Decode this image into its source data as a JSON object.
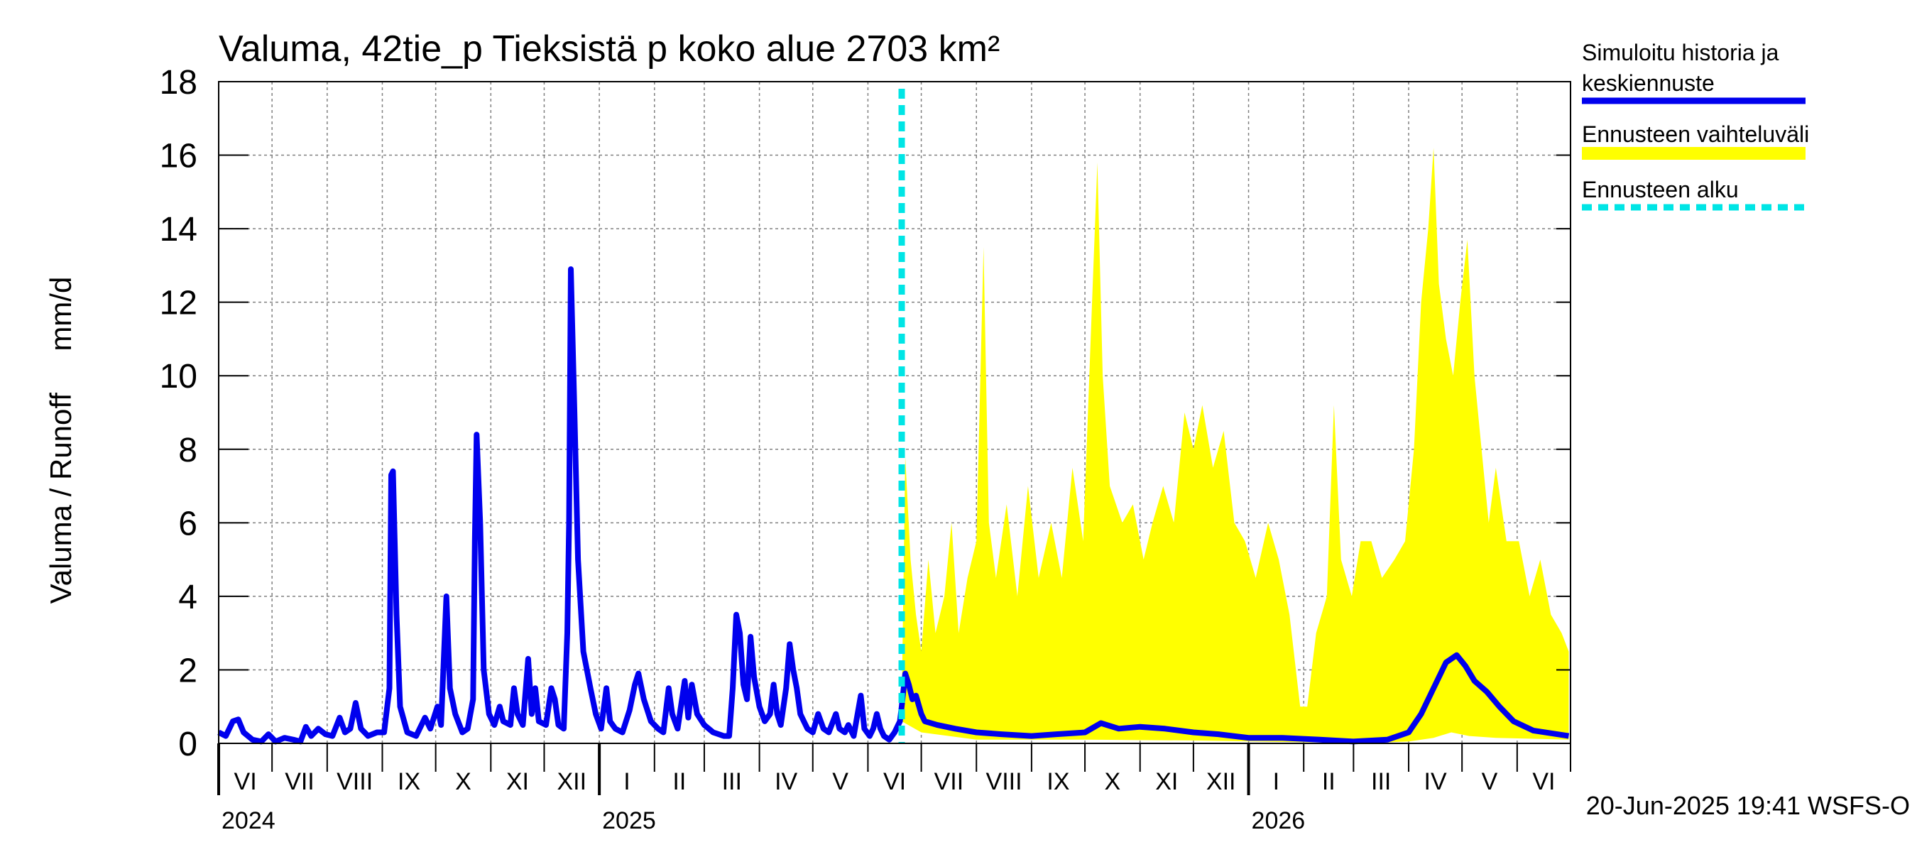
{
  "chart_data": {
    "type": "line",
    "title": "Valuma, 42tie_p Tieksistä p koko alue 2703 km²",
    "ylabel": "Valuma / Runoff     mm/d",
    "ylim": [
      0,
      18
    ],
    "yticks": [
      0,
      2,
      4,
      6,
      8,
      10,
      12,
      14,
      16,
      18
    ],
    "xlim": [
      "2024-06-01",
      "2026-06-30"
    ],
    "grid": true,
    "forecast_start": "2025-06-20",
    "month_labels": [
      "VI",
      "VII",
      "VIII",
      "IX",
      "X",
      "XI",
      "XII",
      "I",
      "II",
      "III",
      "IV",
      "V",
      "VI",
      "VII",
      "VIII",
      "IX",
      "X",
      "XI",
      "XII",
      "I",
      "II",
      "III",
      "IV",
      "V",
      "VI"
    ],
    "year_labels": [
      {
        "label": "2024",
        "date": "2024-06-01"
      },
      {
        "label": "2025",
        "date": "2025-01-01"
      },
      {
        "label": "2026",
        "date": "2026-01-01"
      }
    ],
    "legend_position": "right",
    "series": [
      {
        "name": "Simuloitu historia ja keskiennuste",
        "color": "#0000ee",
        "points": [
          [
            "2024-06-01",
            0.3
          ],
          [
            "2024-06-05",
            0.2
          ],
          [
            "2024-06-09",
            0.6
          ],
          [
            "2024-06-12",
            0.65
          ],
          [
            "2024-06-15",
            0.3
          ],
          [
            "2024-06-20",
            0.1
          ],
          [
            "2024-06-25",
            0.05
          ],
          [
            "2024-06-29",
            0.25
          ],
          [
            "2024-07-03",
            0.05
          ],
          [
            "2024-07-08",
            0.15
          ],
          [
            "2024-07-13",
            0.1
          ],
          [
            "2024-07-17",
            0.05
          ],
          [
            "2024-07-20",
            0.45
          ],
          [
            "2024-07-23",
            0.2
          ],
          [
            "2024-07-27",
            0.4
          ],
          [
            "2024-07-31",
            0.25
          ],
          [
            "2024-08-04",
            0.2
          ],
          [
            "2024-08-08",
            0.7
          ],
          [
            "2024-08-11",
            0.3
          ],
          [
            "2024-08-14",
            0.4
          ],
          [
            "2024-08-17",
            1.1
          ],
          [
            "2024-08-20",
            0.4
          ],
          [
            "2024-08-24",
            0.2
          ],
          [
            "2024-08-29",
            0.3
          ],
          [
            "2024-09-02",
            0.3
          ],
          [
            "2024-09-05",
            1.5
          ],
          [
            "2024-09-06",
            7.3
          ],
          [
            "2024-09-07",
            7.4
          ],
          [
            "2024-09-09",
            3.5
          ],
          [
            "2024-09-11",
            1.0
          ],
          [
            "2024-09-15",
            0.3
          ],
          [
            "2024-09-20",
            0.2
          ],
          [
            "2024-09-25",
            0.7
          ],
          [
            "2024-09-28",
            0.4
          ],
          [
            "2024-10-02",
            1.0
          ],
          [
            "2024-10-04",
            0.5
          ],
          [
            "2024-10-07",
            4.0
          ],
          [
            "2024-10-09",
            1.5
          ],
          [
            "2024-10-12",
            0.8
          ],
          [
            "2024-10-16",
            0.3
          ],
          [
            "2024-10-19",
            0.4
          ],
          [
            "2024-10-22",
            1.2
          ],
          [
            "2024-10-23",
            5.5
          ],
          [
            "2024-10-24",
            8.4
          ],
          [
            "2024-10-26",
            6.0
          ],
          [
            "2024-10-28",
            2.0
          ],
          [
            "2024-10-31",
            0.8
          ],
          [
            "2024-11-03",
            0.5
          ],
          [
            "2024-11-06",
            1.0
          ],
          [
            "2024-11-08",
            0.6
          ],
          [
            "2024-11-12",
            0.5
          ],
          [
            "2024-11-14",
            1.5
          ],
          [
            "2024-11-16",
            0.8
          ],
          [
            "2024-11-19",
            0.5
          ],
          [
            "2024-11-22",
            2.3
          ],
          [
            "2024-11-24",
            0.8
          ],
          [
            "2024-11-26",
            1.5
          ],
          [
            "2024-11-28",
            0.6
          ],
          [
            "2024-12-02",
            0.5
          ],
          [
            "2024-12-05",
            1.5
          ],
          [
            "2024-12-07",
            1.2
          ],
          [
            "2024-12-09",
            0.5
          ],
          [
            "2024-12-12",
            0.4
          ],
          [
            "2024-12-14",
            3.0
          ],
          [
            "2024-12-15",
            6.0
          ],
          [
            "2024-12-16",
            12.9
          ],
          [
            "2024-12-18",
            9.0
          ],
          [
            "2024-12-20",
            5.0
          ],
          [
            "2024-12-23",
            2.5
          ],
          [
            "2024-12-27",
            1.5
          ],
          [
            "2024-12-30",
            0.8
          ],
          [
            "2025-01-02",
            0.4
          ],
          [
            "2025-01-05",
            1.5
          ],
          [
            "2025-01-07",
            0.6
          ],
          [
            "2025-01-10",
            0.4
          ],
          [
            "2025-01-14",
            0.3
          ],
          [
            "2025-01-18",
            0.9
          ],
          [
            "2025-01-21",
            1.6
          ],
          [
            "2025-01-23",
            1.9
          ],
          [
            "2025-01-26",
            1.2
          ],
          [
            "2025-01-30",
            0.6
          ],
          [
            "2025-02-03",
            0.4
          ],
          [
            "2025-02-06",
            0.3
          ],
          [
            "2025-02-09",
            1.5
          ],
          [
            "2025-02-11",
            0.8
          ],
          [
            "2025-02-14",
            0.4
          ],
          [
            "2025-02-18",
            1.7
          ],
          [
            "2025-02-20",
            0.7
          ],
          [
            "2025-02-22",
            1.6
          ],
          [
            "2025-02-25",
            0.8
          ],
          [
            "2025-03-01",
            0.5
          ],
          [
            "2025-03-06",
            0.3
          ],
          [
            "2025-03-12",
            0.2
          ],
          [
            "2025-03-15",
            0.2
          ],
          [
            "2025-03-17",
            1.5
          ],
          [
            "2025-03-19",
            3.5
          ],
          [
            "2025-03-21",
            3.0
          ],
          [
            "2025-03-23",
            1.6
          ],
          [
            "2025-03-25",
            1.2
          ],
          [
            "2025-03-27",
            2.9
          ],
          [
            "2025-03-29",
            1.8
          ],
          [
            "2025-04-01",
            1.0
          ],
          [
            "2025-04-04",
            0.6
          ],
          [
            "2025-04-07",
            0.8
          ],
          [
            "2025-04-09",
            1.6
          ],
          [
            "2025-04-11",
            0.8
          ],
          [
            "2025-04-13",
            0.5
          ],
          [
            "2025-04-16",
            1.5
          ],
          [
            "2025-04-18",
            2.7
          ],
          [
            "2025-04-20",
            2.0
          ],
          [
            "2025-04-22",
            1.5
          ],
          [
            "2025-04-24",
            0.8
          ],
          [
            "2025-04-28",
            0.4
          ],
          [
            "2025-05-01",
            0.3
          ],
          [
            "2025-05-04",
            0.8
          ],
          [
            "2025-05-07",
            0.4
          ],
          [
            "2025-05-10",
            0.3
          ],
          [
            "2025-05-14",
            0.8
          ],
          [
            "2025-05-16",
            0.4
          ],
          [
            "2025-05-19",
            0.3
          ],
          [
            "2025-05-21",
            0.5
          ],
          [
            "2025-05-24",
            0.2
          ],
          [
            "2025-05-28",
            1.3
          ],
          [
            "2025-05-30",
            0.4
          ],
          [
            "2025-06-02",
            0.2
          ],
          [
            "2025-06-04",
            0.4
          ],
          [
            "2025-06-06",
            0.8
          ],
          [
            "2025-06-08",
            0.4
          ],
          [
            "2025-06-10",
            0.2
          ],
          [
            "2025-06-13",
            0.1
          ],
          [
            "2025-06-16",
            0.3
          ],
          [
            "2025-06-19",
            0.6
          ],
          [
            "2025-06-20",
            1.0
          ],
          [
            "2025-06-22",
            1.9
          ],
          [
            "2025-06-24",
            1.6
          ],
          [
            "2025-06-26",
            1.2
          ],
          [
            "2025-06-28",
            1.3
          ],
          [
            "2025-07-01",
            0.8
          ],
          [
            "2025-07-03",
            0.6
          ],
          [
            "2025-07-10",
            0.5
          ],
          [
            "2025-07-20",
            0.4
          ],
          [
            "2025-08-01",
            0.3
          ],
          [
            "2025-08-15",
            0.25
          ],
          [
            "2025-09-01",
            0.2
          ],
          [
            "2025-09-15",
            0.25
          ],
          [
            "2025-10-01",
            0.3
          ],
          [
            "2025-10-10",
            0.55
          ],
          [
            "2025-10-20",
            0.4
          ],
          [
            "2025-11-01",
            0.45
          ],
          [
            "2025-11-15",
            0.4
          ],
          [
            "2025-12-01",
            0.3
          ],
          [
            "2025-12-15",
            0.25
          ],
          [
            "2026-01-01",
            0.15
          ],
          [
            "2026-01-20",
            0.15
          ],
          [
            "2026-02-10",
            0.1
          ],
          [
            "2026-03-01",
            0.05
          ],
          [
            "2026-03-20",
            0.1
          ],
          [
            "2026-04-01",
            0.3
          ],
          [
            "2026-04-08",
            0.8
          ],
          [
            "2026-04-15",
            1.5
          ],
          [
            "2026-04-22",
            2.2
          ],
          [
            "2026-04-28",
            2.4
          ],
          [
            "2026-05-03",
            2.1
          ],
          [
            "2026-05-08",
            1.7
          ],
          [
            "2026-05-15",
            1.4
          ],
          [
            "2026-05-22",
            1.0
          ],
          [
            "2026-05-30",
            0.6
          ],
          [
            "2026-06-10",
            0.35
          ],
          [
            "2026-06-30",
            0.2
          ]
        ]
      },
      {
        "name": "Ennusteen vaihteluväli",
        "color": "#ffff00",
        "upper": [
          [
            "2025-06-20",
            1.0
          ],
          [
            "2025-06-22",
            7.8
          ],
          [
            "2025-06-25",
            5.0
          ],
          [
            "2025-06-28",
            3.5
          ],
          [
            "2025-07-01",
            2.5
          ],
          [
            "2025-07-05",
            5.0
          ],
          [
            "2025-07-09",
            3.0
          ],
          [
            "2025-07-14",
            4.0
          ],
          [
            "2025-07-18",
            6.0
          ],
          [
            "2025-07-22",
            3.0
          ],
          [
            "2025-07-27",
            4.5
          ],
          [
            "2025-08-01",
            5.5
          ],
          [
            "2025-08-05",
            13.5
          ],
          [
            "2025-08-08",
            6.0
          ],
          [
            "2025-08-12",
            4.5
          ],
          [
            "2025-08-18",
            6.5
          ],
          [
            "2025-08-24",
            4.0
          ],
          [
            "2025-08-30",
            7.0
          ],
          [
            "2025-09-05",
            4.5
          ],
          [
            "2025-09-12",
            6.0
          ],
          [
            "2025-09-18",
            4.5
          ],
          [
            "2025-09-24",
            7.5
          ],
          [
            "2025-09-30",
            5.5
          ],
          [
            "2025-10-05",
            12.0
          ],
          [
            "2025-10-08",
            15.8
          ],
          [
            "2025-10-11",
            10.0
          ],
          [
            "2025-10-15",
            7.0
          ],
          [
            "2025-10-22",
            6.0
          ],
          [
            "2025-10-28",
            6.5
          ],
          [
            "2025-11-03",
            5.0
          ],
          [
            "2025-11-08",
            6.0
          ],
          [
            "2025-11-14",
            7.0
          ],
          [
            "2025-11-20",
            6.0
          ],
          [
            "2025-11-26",
            9.0
          ],
          [
            "2025-12-01",
            8.0
          ],
          [
            "2025-12-06",
            9.2
          ],
          [
            "2025-12-12",
            7.5
          ],
          [
            "2025-12-18",
            8.5
          ],
          [
            "2025-12-24",
            6.0
          ],
          [
            "2025-12-30",
            5.5
          ],
          [
            "2026-01-05",
            4.5
          ],
          [
            "2026-01-12",
            6.0
          ],
          [
            "2026-01-18",
            5.0
          ],
          [
            "2026-01-24",
            3.5
          ],
          [
            "2026-01-30",
            1.0
          ],
          [
            "2026-02-03",
            1.0
          ],
          [
            "2026-02-08",
            3.0
          ],
          [
            "2026-02-14",
            4.0
          ],
          [
            "2026-02-18",
            9.2
          ],
          [
            "2026-02-22",
            5.0
          ],
          [
            "2026-02-28",
            4.0
          ],
          [
            "2026-03-05",
            5.5
          ],
          [
            "2026-03-11",
            5.5
          ],
          [
            "2026-03-17",
            4.5
          ],
          [
            "2026-03-24",
            5.0
          ],
          [
            "2026-03-30",
            5.5
          ],
          [
            "2026-04-04",
            8.0
          ],
          [
            "2026-04-08",
            12.0
          ],
          [
            "2026-04-12",
            14.0
          ],
          [
            "2026-04-15",
            16.2
          ],
          [
            "2026-04-18",
            12.5
          ],
          [
            "2026-04-22",
            11.0
          ],
          [
            "2026-04-26",
            10.0
          ],
          [
            "2026-04-30",
            12.0
          ],
          [
            "2026-05-04",
            13.7
          ],
          [
            "2026-05-08",
            10.0
          ],
          [
            "2026-05-12",
            8.0
          ],
          [
            "2026-05-16",
            6.0
          ],
          [
            "2026-05-20",
            7.5
          ],
          [
            "2026-05-26",
            5.5
          ],
          [
            "2026-06-02",
            5.5
          ],
          [
            "2026-06-08",
            4.0
          ],
          [
            "2026-06-14",
            5.0
          ],
          [
            "2026-06-20",
            3.5
          ],
          [
            "2026-06-26",
            3.0
          ],
          [
            "2026-06-30",
            2.5
          ]
        ],
        "lower": [
          [
            "2025-06-20",
            0.6
          ],
          [
            "2025-07-01",
            0.3
          ],
          [
            "2025-08-01",
            0.1
          ],
          [
            "2025-10-01",
            0.1
          ],
          [
            "2025-12-01",
            0.08
          ],
          [
            "2026-02-01",
            0.03
          ],
          [
            "2026-03-15",
            0.02
          ],
          [
            "2026-04-01",
            0.05
          ],
          [
            "2026-04-15",
            0.15
          ],
          [
            "2026-04-25",
            0.3
          ],
          [
            "2026-05-05",
            0.2
          ],
          [
            "2026-05-20",
            0.15
          ],
          [
            "2026-06-30",
            0.1
          ]
        ]
      },
      {
        "name": "Ennusteen alku",
        "color": "#00e5e5",
        "x": "2025-06-20"
      }
    ],
    "footer": "20-Jun-2025 19:41 WSFS-O"
  }
}
